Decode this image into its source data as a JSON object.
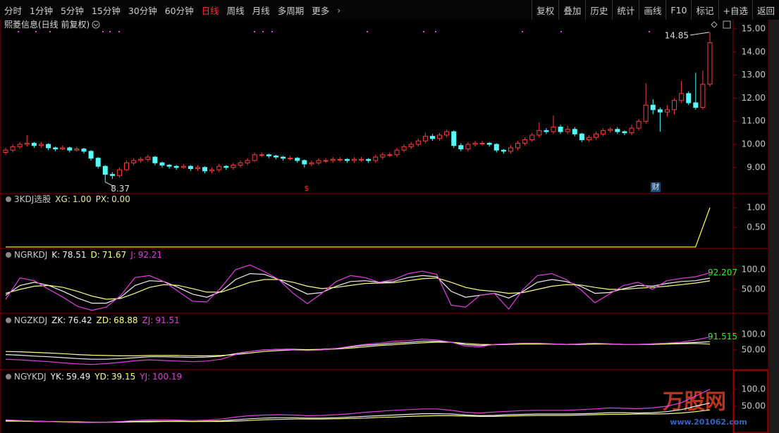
{
  "toolbar": {
    "left": [
      "分时",
      "1分钟",
      "5分钟",
      "15分钟",
      "30分钟",
      "60分钟",
      "日线",
      "周线",
      "月线",
      "多周期",
      "更多"
    ],
    "active": 6,
    "right": [
      "复权",
      "叠加",
      "历史",
      "统计",
      "画线",
      "F10",
      "标记",
      "+自选",
      "返回"
    ]
  },
  "watermark": {
    "title": "万股网",
    "url": "www.201062.com"
  },
  "chart_data": [
    {
      "type": "candlestick",
      "title": "熙菱信息(日线 前复权)",
      "up_color": "#ff3c3c",
      "down_color": "#54fcfc",
      "events": [
        {
          "label": "$"
        },
        {
          "label": "财"
        }
      ],
      "open": [
        9.65,
        9.75,
        9.9,
        10.0,
        10.05,
        9.95,
        10.0,
        9.85,
        9.8,
        9.85,
        9.75,
        9.8,
        9.7,
        9.4,
        9.05,
        8.7,
        8.65,
        8.9,
        9.2,
        9.3,
        9.35,
        9.45,
        9.2,
        9.1,
        9.05,
        9.0,
        9.05,
        8.95,
        9.0,
        8.85,
        8.9,
        9.05,
        9.0,
        9.1,
        9.2,
        9.3,
        9.55,
        9.55,
        9.5,
        9.45,
        9.4,
        9.4,
        9.3,
        9.15,
        9.2,
        9.3,
        9.3,
        9.35,
        9.35,
        9.3,
        9.35,
        9.35,
        9.3,
        9.45,
        9.55,
        9.55,
        9.75,
        9.9,
        10.0,
        10.15,
        10.35,
        10.25,
        10.4,
        10.55,
        9.95,
        9.8,
        10.0,
        10.05,
        10.05,
        10.0,
        9.75,
        9.7,
        9.85,
        10.05,
        10.2,
        10.4,
        10.6,
        10.55,
        10.75,
        10.55,
        10.65,
        10.45,
        10.2,
        10.3,
        10.45,
        10.6,
        10.65,
        10.55,
        10.5,
        10.7,
        11.0,
        11.7,
        11.5,
        11.4,
        11.5,
        11.9,
        12.2,
        11.8,
        11.6,
        12.6
      ],
      "high": [
        9.85,
        10.0,
        10.1,
        10.4,
        10.1,
        10.1,
        10.05,
        9.9,
        9.95,
        9.9,
        9.9,
        9.85,
        9.75,
        9.45,
        9.1,
        8.8,
        9.0,
        9.3,
        9.4,
        9.45,
        9.55,
        9.5,
        9.25,
        9.15,
        9.1,
        9.15,
        9.1,
        9.1,
        9.05,
        9.0,
        9.15,
        9.1,
        9.2,
        9.3,
        9.4,
        9.65,
        9.65,
        9.6,
        9.55,
        9.5,
        9.5,
        9.45,
        9.35,
        9.3,
        9.4,
        9.4,
        9.45,
        9.45,
        9.4,
        9.45,
        9.45,
        9.4,
        9.55,
        9.65,
        9.65,
        9.85,
        10.0,
        10.1,
        10.25,
        10.5,
        10.45,
        10.5,
        10.65,
        10.6,
        10.05,
        10.1,
        10.15,
        10.15,
        10.1,
        10.05,
        9.8,
        9.95,
        10.15,
        10.3,
        10.5,
        10.95,
        10.7,
        11.25,
        10.85,
        10.8,
        10.75,
        10.5,
        10.4,
        10.55,
        10.7,
        10.75,
        10.75,
        10.6,
        10.85,
        11.1,
        12.65,
        11.95,
        11.6,
        11.7,
        12.0,
        12.75,
        12.3,
        13.1,
        13.2,
        14.85
      ],
      "low": [
        9.55,
        9.65,
        9.8,
        9.9,
        9.85,
        9.85,
        9.75,
        9.7,
        9.75,
        9.65,
        9.7,
        9.6,
        9.3,
        8.95,
        8.37,
        8.5,
        8.55,
        8.85,
        9.1,
        9.2,
        9.25,
        9.1,
        9.0,
        8.95,
        8.9,
        8.95,
        8.85,
        8.85,
        8.75,
        8.75,
        8.8,
        8.9,
        8.9,
        9.0,
        9.1,
        9.25,
        9.45,
        9.4,
        9.35,
        9.3,
        9.3,
        9.2,
        9.0,
        9.05,
        9.1,
        9.2,
        9.2,
        9.25,
        9.2,
        9.2,
        9.25,
        9.2,
        9.2,
        9.35,
        9.45,
        9.45,
        9.65,
        9.8,
        9.9,
        10.05,
        10.15,
        10.15,
        10.3,
        9.85,
        9.7,
        9.7,
        9.9,
        9.95,
        9.9,
        9.65,
        9.6,
        9.6,
        9.75,
        9.95,
        10.1,
        10.3,
        10.45,
        10.45,
        10.45,
        10.45,
        10.35,
        10.1,
        10.1,
        10.2,
        10.35,
        10.5,
        10.45,
        10.4,
        10.4,
        10.6,
        10.9,
        11.3,
        10.55,
        11.2,
        11.3,
        11.8,
        11.7,
        11.5,
        11.5,
        12.5
      ],
      "close": [
        9.75,
        9.9,
        10.0,
        10.05,
        9.95,
        10.0,
        9.85,
        9.8,
        9.85,
        9.75,
        9.8,
        9.7,
        9.4,
        9.05,
        8.7,
        8.65,
        8.9,
        9.2,
        9.3,
        9.35,
        9.45,
        9.2,
        9.1,
        9.05,
        9.0,
        9.05,
        8.95,
        9.0,
        8.85,
        8.9,
        9.05,
        9.0,
        9.1,
        9.2,
        9.3,
        9.55,
        9.55,
        9.5,
        9.45,
        9.4,
        9.4,
        9.3,
        9.15,
        9.2,
        9.3,
        9.3,
        9.35,
        9.35,
        9.3,
        9.35,
        9.35,
        9.3,
        9.45,
        9.55,
        9.55,
        9.75,
        9.9,
        10.0,
        10.15,
        10.35,
        10.25,
        10.4,
        10.55,
        9.95,
        9.8,
        10.0,
        10.05,
        10.05,
        10.0,
        9.75,
        9.7,
        9.85,
        10.05,
        10.2,
        10.4,
        10.6,
        10.55,
        10.75,
        10.55,
        10.65,
        10.45,
        10.2,
        10.3,
        10.45,
        10.6,
        10.65,
        10.55,
        10.5,
        10.7,
        11.0,
        11.7,
        11.5,
        11.4,
        11.5,
        11.9,
        12.2,
        11.8,
        11.6,
        12.6,
        14.4
      ],
      "ylim": [
        8.02,
        15.335
      ],
      "yticks": [
        {
          "value": 9,
          "label": "9.00"
        },
        {
          "value": 10,
          "label": "10.00"
        },
        {
          "value": 11,
          "label": "11.00"
        },
        {
          "value": 12,
          "label": "12.00"
        },
        {
          "value": 13,
          "label": "13.00"
        },
        {
          "value": 14,
          "label": "14.00"
        },
        {
          "value": 15,
          "label": "15.00"
        }
      ]
    },
    {
      "type": "line",
      "title": "3KDJ选股",
      "readouts": [
        {
          "name": "XG:",
          "value": 1,
          "label": "1.00"
        },
        {
          "name": "PX:",
          "value": 0,
          "label": "0.00"
        }
      ],
      "series": [
        {
          "name": "XG",
          "color": "#ffff55",
          "values": [
            0,
            0,
            0,
            0,
            0,
            0,
            0,
            0,
            0,
            0,
            0,
            0,
            0,
            0,
            0,
            0,
            0,
            0,
            0,
            0,
            0,
            0,
            0,
            0,
            0,
            0,
            0,
            0,
            0,
            0,
            0,
            0,
            0,
            0,
            0,
            0,
            0,
            0,
            0,
            0,
            0,
            0,
            0,
            0,
            0,
            0,
            0,
            0,
            0,
            1
          ]
        }
      ],
      "ylim": [
        -0.04,
        1.09
      ],
      "yticks": [
        {
          "value": 0.5,
          "label": "0.50"
        },
        {
          "value": 1,
          "label": "1.00"
        }
      ]
    },
    {
      "type": "line",
      "title": "NGRKDJ",
      "end_label": 92.207,
      "series": [
        {
          "name": "K:",
          "color": "#f0f0f0",
          "values": [
            35,
            60,
            68,
            60,
            45,
            28,
            15,
            15,
            30,
            60,
            72,
            70,
            55,
            38,
            30,
            45,
            75,
            90,
            88,
            75,
            55,
            38,
            42,
            58,
            70,
            72,
            68,
            70,
            80,
            85,
            82,
            45,
            30,
            35,
            40,
            28,
            45,
            68,
            75,
            70,
            58,
            40,
            42,
            52,
            60,
            58,
            65,
            70,
            72,
            78.51
          ]
        },
        {
          "name": "D:",
          "color": "#ffff80",
          "values": [
            40,
            50,
            58,
            60,
            55,
            45,
            33,
            25,
            27,
            40,
            55,
            62,
            60,
            52,
            43,
            43,
            55,
            68,
            75,
            75,
            68,
            58,
            52,
            55,
            60,
            65,
            66,
            67,
            72,
            77,
            79,
            68,
            55,
            48,
            45,
            40,
            42,
            50,
            58,
            62,
            61,
            55,
            50,
            50,
            53,
            55,
            58,
            62,
            66,
            71.67
          ]
        },
        {
          "name": "J:",
          "color": "#e040e0",
          "values": [
            25,
            79,
            72,
            50,
            30,
            7,
            -3,
            5,
            34,
            80,
            85,
            70,
            45,
            20,
            18,
            55,
            100,
            112,
            95,
            75,
            40,
            14,
            40,
            70,
            85,
            80,
            68,
            75,
            90,
            96,
            88,
            10,
            5,
            35,
            40,
            0,
            50,
            85,
            90,
            75,
            50,
            16,
            38,
            60,
            68,
            50,
            72,
            78,
            82,
            92.21
          ]
        }
      ],
      "ylim": [
        -10.7,
        126.8
      ],
      "yticks": [
        {
          "value": 50,
          "label": "50.00"
        },
        {
          "value": 100,
          "label": "100.0"
        }
      ]
    },
    {
      "type": "line",
      "title": "NGZKDJ",
      "end_label": 91.515,
      "series": [
        {
          "name": "ZK:",
          "color": "#f0f0f0",
          "values": [
            35,
            33,
            30,
            28,
            25,
            22,
            20,
            20,
            22,
            25,
            28,
            28,
            27,
            26,
            27,
            30,
            38,
            45,
            50,
            52,
            52,
            51,
            52,
            55,
            60,
            65,
            68,
            72,
            74,
            78,
            78,
            75,
            67,
            64,
            67,
            69,
            70,
            70,
            69,
            68,
            69,
            70,
            69,
            68,
            68,
            69,
            70,
            72,
            74,
            76.42
          ]
        },
        {
          "name": "ZD:",
          "color": "#ffff80",
          "values": [
            45,
            44,
            42,
            40,
            38,
            35,
            33,
            32,
            31,
            31,
            32,
            32,
            32,
            31,
            31,
            32,
            35,
            40,
            45,
            48,
            50,
            50,
            51,
            53,
            56,
            60,
            64,
            67,
            70,
            73,
            75,
            75,
            71,
            68,
            67,
            68,
            69,
            69,
            69,
            68,
            68,
            69,
            69,
            68,
            68,
            68,
            69,
            70,
            71,
            68.88
          ]
        },
        {
          "name": "ZJ:",
          "color": "#e040e0",
          "values": [
            20,
            18,
            15,
            12,
            8,
            5,
            3,
            6,
            10,
            15,
            18,
            16,
            14,
            12,
            14,
            20,
            35,
            45,
            50,
            52,
            50,
            48,
            50,
            55,
            62,
            68,
            72,
            78,
            80,
            85,
            82,
            75,
            62,
            60,
            68,
            70,
            72,
            72,
            70,
            68,
            70,
            72,
            70,
            68,
            68,
            70,
            72,
            75,
            82,
            91.51
          ]
        }
      ],
      "ylim": [
        -13.6,
        129.5
      ],
      "yticks": [
        {
          "value": 50,
          "label": "50.00"
        },
        {
          "value": 100,
          "label": "100.0"
        }
      ]
    },
    {
      "type": "line",
      "title": "NGYKDJ",
      "series": [
        {
          "name": "YK:",
          "color": "#f0f0f0",
          "values": [
            8,
            7,
            6,
            5,
            4,
            3,
            3,
            3,
            4,
            5,
            6,
            6,
            6,
            5,
            6,
            7,
            10,
            13,
            15,
            16,
            16,
            15,
            15,
            16,
            18,
            20,
            22,
            24,
            26,
            28,
            28,
            27,
            24,
            22,
            23,
            25,
            26,
            27,
            27,
            27,
            28,
            29,
            31,
            31,
            30,
            31,
            34,
            40,
            50,
            59.49
          ]
        },
        {
          "name": "YD:",
          "color": "#ffff80",
          "values": [
            6,
            6,
            5,
            5,
            4,
            4,
            3,
            3,
            3,
            4,
            4,
            5,
            5,
            5,
            5,
            5,
            6,
            8,
            10,
            11,
            12,
            12,
            12,
            13,
            14,
            15,
            17,
            18,
            20,
            21,
            22,
            22,
            21,
            20,
            20,
            21,
            22,
            23,
            23,
            23,
            24,
            25,
            26,
            26,
            27,
            27,
            28,
            30,
            34,
            39.15
          ]
        },
        {
          "name": "YJ:",
          "color": "#e040e0",
          "values": [
            10,
            8,
            6,
            5,
            3,
            2,
            2,
            3,
            5,
            8,
            10,
            10,
            9,
            8,
            9,
            12,
            18,
            22,
            24,
            25,
            24,
            22,
            23,
            25,
            28,
            32,
            35,
            38,
            40,
            42,
            42,
            38,
            32,
            30,
            33,
            35,
            37,
            38,
            38,
            38,
            40,
            42,
            45,
            44,
            43,
            45,
            50,
            60,
            80,
            100.19
          ]
        }
      ],
      "ylim": [
        -22.9,
        122.9
      ],
      "yticks": [
        {
          "value": 50,
          "label": "50.00"
        },
        {
          "value": 100,
          "label": "100.0"
        }
      ]
    }
  ]
}
